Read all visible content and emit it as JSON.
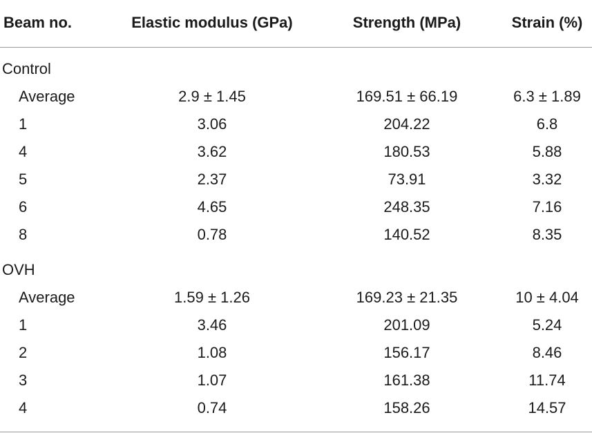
{
  "table": {
    "headers": [
      "Beam no.",
      "Elastic modulus (GPa)",
      "Strength (MPa)",
      "Strain (%)"
    ],
    "groups": [
      {
        "label": "Control",
        "rows": [
          [
            "Average",
            "2.9 ± 1.45",
            "169.51 ± 66.19",
            "6.3 ± 1.89"
          ],
          [
            "1",
            "3.06",
            "204.22",
            "6.8"
          ],
          [
            "4",
            "3.62",
            "180.53",
            "5.88"
          ],
          [
            "5",
            "2.37",
            "73.91",
            "3.32"
          ],
          [
            "6",
            "4.65",
            "248.35",
            "7.16"
          ],
          [
            "8",
            "0.78",
            "140.52",
            "8.35"
          ]
        ]
      },
      {
        "label": "OVH",
        "rows": [
          [
            "Average",
            "1.59 ± 1.26",
            "169.23 ± 21.35",
            "10 ± 4.04"
          ],
          [
            "1",
            "3.46",
            "201.09",
            "5.24"
          ],
          [
            "2",
            "1.08",
            "156.17",
            "8.46"
          ],
          [
            "3",
            "1.07",
            "161.38",
            "11.74"
          ],
          [
            "4",
            "0.74",
            "158.26",
            "14.57"
          ]
        ]
      }
    ]
  }
}
